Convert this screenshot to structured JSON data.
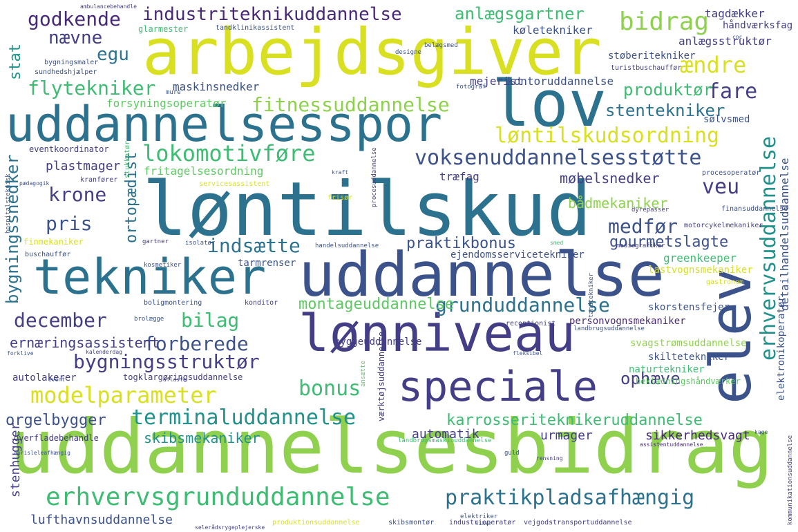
{
  "palette": {
    "lime": "#8fd14f",
    "yellow": "#d9e021",
    "teal": "#21918c",
    "teal_dark": "#2c728e",
    "blue": "#3b528b",
    "indigo": "#433e85",
    "purple": "#482878",
    "green": "#3fbc73",
    "mint": "#5ec962"
  },
  "words": [
    {
      "text": "uddannelsesbidrag",
      "color": "#8fd14f",
      "orient": "h"
    },
    {
      "text": "arbejdsgiver",
      "color": "#d9e021",
      "orient": "h"
    },
    {
      "text": "uddannelsesspor",
      "color": "#2c728e",
      "orient": "h"
    },
    {
      "text": "løntilskud",
      "color": "#2c728e",
      "orient": "h"
    },
    {
      "text": "uddannelse",
      "color": "#3b528b",
      "orient": "h"
    },
    {
      "text": "lov",
      "color": "#2c728e",
      "orient": "h"
    },
    {
      "text": "tekniker",
      "color": "#2c728e",
      "orient": "h"
    },
    {
      "text": "lønniveau",
      "color": "#433e85",
      "orient": "h"
    },
    {
      "text": "elev",
      "color": "#3b528b",
      "orient": "v"
    },
    {
      "text": "speciale",
      "color": "#433e85",
      "orient": "h"
    },
    {
      "text": "erhvervsgrunduddannelse",
      "color": "#3fbc73",
      "orient": "h"
    },
    {
      "text": "modelparameter",
      "color": "#d9e021",
      "orient": "h"
    },
    {
      "text": "voksenuddannelsesstøtte",
      "color": "#3b528b",
      "orient": "h"
    },
    {
      "text": "lokomotivføre",
      "color": "#3fbc73",
      "orient": "h"
    },
    {
      "text": "løntilskudsordning",
      "color": "#d9e021",
      "orient": "h"
    },
    {
      "text": "terminaluddannelse",
      "color": "#21918c",
      "orient": "h"
    },
    {
      "text": "praktikpladsafhængig",
      "color": "#2c728e",
      "orient": "h"
    },
    {
      "text": "bidrag",
      "color": "#8fd14f",
      "orient": "h"
    },
    {
      "text": "ændre",
      "color": "#d9e021",
      "orient": "h"
    },
    {
      "text": "fare",
      "color": "#433e85",
      "orient": "h"
    },
    {
      "text": "veu",
      "color": "#433e85",
      "orient": "h"
    },
    {
      "text": "erhvervsuddannelse",
      "color": "#21918c",
      "orient": "v"
    },
    {
      "text": "bygningsstruktør",
      "color": "#433e85",
      "orient": "h"
    },
    {
      "text": "grunduddannelse",
      "color": "#2c728e",
      "orient": "h"
    },
    {
      "text": "bonus",
      "color": "#3fbc73",
      "orient": "h"
    },
    {
      "text": "december",
      "color": "#433e85",
      "orient": "h"
    },
    {
      "text": "bilag",
      "color": "#3fbc73",
      "orient": "h"
    },
    {
      "text": "forberede",
      "color": "#3b528b",
      "orient": "h"
    },
    {
      "text": "indsætte",
      "color": "#2c728e",
      "orient": "h"
    },
    {
      "text": "pris",
      "color": "#3b528b",
      "orient": "h"
    },
    {
      "text": "krone",
      "color": "#433e85",
      "orient": "h"
    },
    {
      "text": "medfør",
      "color": "#3b528b",
      "orient": "h"
    },
    {
      "text": "fitnessuddannelse",
      "color": "#8fd14f",
      "orient": "h"
    },
    {
      "text": "flytekniker",
      "color": "#3fbc73",
      "orient": "h"
    },
    {
      "text": "industriteknikuddannelse",
      "color": "#482878",
      "orient": "h"
    },
    {
      "text": "godkende",
      "color": "#482878",
      "orient": "h"
    },
    {
      "text": "nævne",
      "color": "#433e85",
      "orient": "h"
    },
    {
      "text": "egu",
      "color": "#2c728e",
      "orient": "h"
    },
    {
      "text": "anlægsgartner",
      "color": "#3fbc73",
      "orient": "h"
    },
    {
      "text": "stentekniker",
      "color": "#2c728e",
      "orient": "h"
    },
    {
      "text": "produktør",
      "color": "#3fbc73",
      "orient": "h"
    },
    {
      "text": "karrosseriteknikeruddannelse",
      "color": "#3fbc73",
      "orient": "h"
    },
    {
      "text": "montageuddannelse",
      "color": "#5ec962",
      "orient": "h"
    },
    {
      "text": "gourmetslagte",
      "color": "#3b528b",
      "orient": "h"
    },
    {
      "text": "praktikbonus",
      "color": "#3b528b",
      "orient": "h"
    },
    {
      "text": "bådmekaniker",
      "color": "#8fd14f",
      "orient": "h"
    },
    {
      "text": "møbelsnedker",
      "color": "#433e85",
      "orient": "h"
    },
    {
      "text": "ophæve",
      "color": "#433e85",
      "orient": "h"
    },
    {
      "text": "orgelbygger",
      "color": "#3b528b",
      "orient": "h"
    },
    {
      "text": "skibsmekaniker",
      "color": "#21918c",
      "orient": "h"
    },
    {
      "text": "ernæringsassistent",
      "color": "#433e85",
      "orient": "h"
    },
    {
      "text": "bygningssnedker",
      "color": "#2c728e",
      "orient": "v"
    },
    {
      "text": "ortopædist",
      "color": "#2c728e",
      "orient": "v"
    },
    {
      "text": "stat",
      "color": "#21918c",
      "orient": "v"
    },
    {
      "text": "lufthavnsuddannelse",
      "color": "#3b528b",
      "orient": "h"
    },
    {
      "text": "sikkerhedsvagt",
      "color": "#482878",
      "orient": "h"
    },
    {
      "text": "automatik",
      "color": "#433e85",
      "orient": "h"
    },
    {
      "text": "urmager",
      "color": "#433e85",
      "orient": "h"
    },
    {
      "text": "stenhugger",
      "color": "#433e85",
      "orient": "v"
    },
    {
      "text": "plastmager",
      "color": "#433e85",
      "orient": "h"
    },
    {
      "text": "fritagelsesordning",
      "color": "#5ec962",
      "orient": "h"
    },
    {
      "text": "træfag",
      "color": "#433e85",
      "orient": "h"
    },
    {
      "text": "mejerist",
      "color": "#433e85",
      "orient": "h"
    },
    {
      "text": "maskinsnedker",
      "color": "#3b528b",
      "orient": "h"
    },
    {
      "text": "forsyningsoperatør",
      "color": "#5ec962",
      "orient": "h"
    },
    {
      "text": "kontoruddannelse",
      "color": "#3b528b",
      "orient": "h"
    },
    {
      "text": "tagdækker",
      "color": "#433e85",
      "orient": "h"
    },
    {
      "text": "køletekniker",
      "color": "#3b528b",
      "orient": "h"
    },
    {
      "text": "håndværksfag",
      "color": "#433e85",
      "orient": "h"
    },
    {
      "text": "anlægsstruktør",
      "color": "#433e85",
      "orient": "h"
    },
    {
      "text": "støberitekniker",
      "color": "#3b528b",
      "orient": "h"
    },
    {
      "text": "sølvsmed",
      "color": "#3b528b",
      "orient": "h"
    },
    {
      "text": "detailhandelsuddannelse",
      "color": "#3b528b",
      "orient": "v"
    },
    {
      "text": "elektronikoperatør",
      "color": "#3b528b",
      "orient": "v"
    },
    {
      "text": "greenkeeper",
      "color": "#3fbc73",
      "orient": "h"
    },
    {
      "text": "lastvognsmekaniker",
      "color": "#d9e021",
      "orient": "h"
    },
    {
      "text": "ejendomsservicetekniker",
      "color": "#3b528b",
      "orient": "h"
    },
    {
      "text": "tarmrenser",
      "color": "#3b528b",
      "orient": "h"
    },
    {
      "text": "personvognsmekaniker",
      "color": "#482878",
      "orient": "h"
    },
    {
      "text": "skorstensfejer",
      "color": "#3b528b",
      "orient": "h"
    },
    {
      "text": "byggeuddannelse",
      "color": "#433e85",
      "orient": "h"
    },
    {
      "text": "svagstrømsuddannelse",
      "color": "#8fd14f",
      "orient": "h"
    },
    {
      "text": "skiltetekniker",
      "color": "#3b528b",
      "orient": "h"
    },
    {
      "text": "naturtekniker",
      "color": "#3fbc73",
      "orient": "h"
    },
    {
      "text": "beklædningshåndværker",
      "color": "#5ec962",
      "orient": "h"
    },
    {
      "text": "togklargøringsuddannelse",
      "color": "#433e85",
      "orient": "h"
    },
    {
      "text": "autolakerer",
      "color": "#433e85",
      "orient": "h"
    },
    {
      "text": "glarmester",
      "color": "#3fbc73",
      "orient": "h"
    },
    {
      "text": "tandklinikassistent",
      "color": "#3b528b",
      "orient": "h"
    },
    {
      "text": "bygningsmaler",
      "color": "#3b528b",
      "orient": "h"
    },
    {
      "text": "sundhedshjælper",
      "color": "#3b528b",
      "orient": "h"
    },
    {
      "text": "eventkoordinator",
      "color": "#433e85",
      "orient": "h"
    },
    {
      "text": "kranfører",
      "color": "#433e85",
      "orient": "h"
    },
    {
      "text": "pædagogik",
      "color": "#3b528b",
      "orient": "h"
    },
    {
      "text": "finmekaniker",
      "color": "#d9e021",
      "orient": "h"
    },
    {
      "text": "buschauffør",
      "color": "#3b528b",
      "orient": "h"
    },
    {
      "text": "kosmetiker",
      "color": "#3b528b",
      "orient": "h"
    },
    {
      "text": "boligmontering",
      "color": "#3b528b",
      "orient": "h"
    },
    {
      "text": "konditor",
      "color": "#433e85",
      "orient": "h"
    },
    {
      "text": "brolægge",
      "color": "#3b528b",
      "orient": "h"
    },
    {
      "text": "receptionist",
      "color": "#433e85",
      "orient": "h"
    },
    {
      "text": "landbrugsuddannelse",
      "color": "#3b528b",
      "orient": "h"
    },
    {
      "text": "gastronom",
      "color": "#d9e021",
      "orient": "h"
    },
    {
      "text": "motorcykelmekaniker",
      "color": "#433e85",
      "orient": "h"
    },
    {
      "text": "mediegrafiker",
      "color": "#433e85",
      "orient": "h"
    },
    {
      "text": "finansuddannelse",
      "color": "#3b528b",
      "orient": "h"
    },
    {
      "text": "dyrepasser",
      "color": "#433e85",
      "orient": "h"
    },
    {
      "text": "servicesassistent",
      "color": "#d9e021",
      "orient": "h"
    },
    {
      "text": "gartner",
      "color": "#433e85",
      "orient": "h"
    },
    {
      "text": "isolatør",
      "color": "#3b528b",
      "orient": "h"
    },
    {
      "text": "handelsuddannelse",
      "color": "#3b528b",
      "orient": "h"
    },
    {
      "text": "procesoperatør",
      "color": "#3b528b",
      "orient": "h"
    },
    {
      "text": "turistbuschauffør",
      "color": "#433e85",
      "orient": "h"
    },
    {
      "text": "stukkatør",
      "color": "#3fbc73",
      "orient": "v"
    },
    {
      "text": "hospitalsteknisk",
      "color": "#3b528b",
      "orient": "v"
    },
    {
      "text": "fotograf",
      "color": "#3b528b",
      "orient": "h"
    },
    {
      "text": "mure",
      "color": "#3b528b",
      "orient": "h"
    },
    {
      "text": "frisør",
      "color": "#d9e021",
      "orient": "h"
    },
    {
      "text": "designe",
      "color": "#3b528b",
      "orient": "h"
    },
    {
      "text": "belægsmed",
      "color": "#3b528b",
      "orient": "h"
    },
    {
      "text": "cnc",
      "color": "#3b528b",
      "orient": "h"
    },
    {
      "text": "værktøjsuddannelse",
      "color": "#433e85",
      "orient": "v"
    },
    {
      "text": "overfladebehandle",
      "color": "#433e85",
      "orient": "h"
    },
    {
      "text": "industrioperatør",
      "color": "#433e85",
      "orient": "h"
    },
    {
      "text": "produktionsuddannelse",
      "color": "#d9e021",
      "orient": "h"
    },
    {
      "text": "skibsmontør",
      "color": "#3b528b",
      "orient": "h"
    },
    {
      "text": "vejgodstransportuddannelse",
      "color": "#433e85",
      "orient": "h"
    },
    {
      "text": "landbrugsmaskinuddannelse",
      "color": "#3fbc73",
      "orient": "h"
    },
    {
      "text": "elektriker",
      "color": "#3b528b",
      "orient": "h"
    },
    {
      "text": "kommunikationsuddannelse",
      "color": "#433e85",
      "orient": "v"
    },
    {
      "text": "assistentuddannelse",
      "color": "#482878",
      "orient": "h"
    },
    {
      "text": "guld",
      "color": "#3b528b",
      "orient": "h"
    },
    {
      "text": "aflaste",
      "color": "#433e85",
      "orient": "h"
    },
    {
      "text": "event",
      "color": "#3b528b",
      "orient": "h"
    },
    {
      "text": "kalenderdag",
      "color": "#433e85",
      "orient": "h"
    },
    {
      "text": "forklive",
      "color": "#3b528b",
      "orient": "h"
    },
    {
      "text": "ambulancebehandle",
      "color": "#433e85",
      "orient": "h"
    },
    {
      "text": "rensning",
      "color": "#433e85",
      "orient": "h"
    },
    {
      "text": "smed",
      "color": "#3fbc73",
      "orient": "h"
    },
    {
      "text": "kage",
      "color": "#3b528b",
      "orient": "h"
    },
    {
      "text": "tandtekniker",
      "color": "#3b528b",
      "orient": "v"
    },
    {
      "text": "procesuddannelse",
      "color": "#433e85",
      "orient": "v"
    },
    {
      "text": "fleksibel",
      "color": "#3b528b",
      "orient": "h"
    },
    {
      "text": "ansætte",
      "color": "#5ec962",
      "orient": "v"
    },
    {
      "text": "selerådsrygeplejerske",
      "color": "#433e85",
      "orient": "h"
    },
    {
      "text": "abrisleleafhængig",
      "color": "#3b528b",
      "orient": "h"
    },
    {
      "text": "vikar",
      "color": "#3b528b",
      "orient": "h"
    },
    {
      "text": "kraft",
      "color": "#3b528b",
      "orient": "h"
    }
  ]
}
